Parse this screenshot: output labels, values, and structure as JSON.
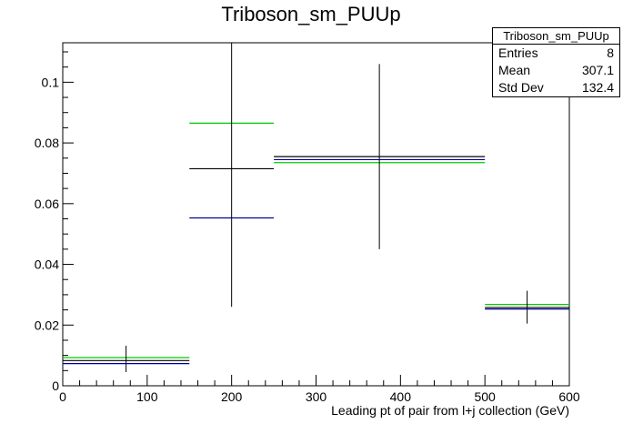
{
  "chart_data": {
    "type": "histogram",
    "title": "Triboson_sm_PUUp",
    "xlabel": "Leading pt of pair from l+j collection (GeV)",
    "ylabel": "",
    "xlim": [
      0,
      600
    ],
    "ylim": [
      0,
      0.113
    ],
    "x_ticks": [
      0,
      100,
      200,
      300,
      400,
      500,
      600
    ],
    "x_tick_labels": [
      "0",
      "100",
      "200",
      "300",
      "400",
      "500",
      "600"
    ],
    "y_ticks": [
      0,
      0.02,
      0.04,
      0.06,
      0.08,
      0.1
    ],
    "y_tick_labels": [
      "0",
      "0.02",
      "0.04",
      "0.06",
      "0.08",
      "0.1"
    ],
    "bins": [
      {
        "xlow": 0,
        "xhigh": 150,
        "center": 75
      },
      {
        "xlow": 150,
        "xhigh": 250,
        "center": 200
      },
      {
        "xlow": 250,
        "xhigh": 500,
        "center": 375
      },
      {
        "xlow": 500,
        "xhigh": 600,
        "center": 550
      }
    ],
    "series": [
      {
        "color": "#00cc00",
        "values": [
          0.0093,
          0.0865,
          0.0735,
          0.0268
        ]
      },
      {
        "color": "#000000",
        "values": [
          0.0083,
          0.0715,
          0.0755,
          0.0258
        ],
        "errors_low": [
          0.0045,
          0.026,
          0.045,
          0.0205
        ],
        "errors_high": [
          0.0132,
          0.113,
          0.106,
          0.0313
        ]
      },
      {
        "color": "#000099",
        "values": [
          0.0073,
          0.0553,
          0.0745,
          0.0253
        ]
      }
    ],
    "stats": {
      "name": "Triboson_sm_PUUp",
      "entries_label": "Entries",
      "entries": "8",
      "mean_label": "Mean",
      "mean": "307.1",
      "stddev_label": "Std Dev",
      "stddev": "132.4"
    }
  }
}
